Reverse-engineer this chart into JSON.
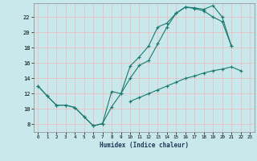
{
  "xlabel": "Humidex (Indice chaleur)",
  "line_color": "#1a7a6e",
  "bg_color": "#c8e8ec",
  "grid_color": "#f0b8b8",
  "xlim": [
    -0.5,
    23.5
  ],
  "ylim": [
    7.0,
    23.8
  ],
  "yticks": [
    8,
    10,
    12,
    14,
    16,
    18,
    20,
    22
  ],
  "xticks": [
    0,
    1,
    2,
    3,
    4,
    5,
    6,
    7,
    8,
    9,
    10,
    11,
    12,
    13,
    14,
    15,
    16,
    17,
    18,
    19,
    20,
    21,
    22,
    23
  ],
  "line1_x": [
    0,
    1,
    2,
    3,
    4,
    5,
    6,
    7,
    8,
    9,
    10,
    11,
    12,
    13,
    14,
    15,
    16,
    17,
    18,
    19,
    20,
    21
  ],
  "line1_y": [
    13,
    11.7,
    10.5,
    10.5,
    10.2,
    9.0,
    7.8,
    8.1,
    10.3,
    12.0,
    15.6,
    16.8,
    18.2,
    20.7,
    21.2,
    22.5,
    23.3,
    23.1,
    22.8,
    22.0,
    21.4,
    18.2
  ],
  "line2_x": [
    0,
    1,
    2,
    3,
    4,
    5,
    6,
    7,
    8,
    9,
    10,
    11,
    12,
    13,
    14,
    15,
    16,
    17,
    18,
    19,
    20,
    21
  ],
  "line2_y": [
    13,
    11.7,
    10.5,
    10.5,
    10.2,
    9.0,
    7.8,
    8.1,
    12.3,
    12.0,
    14.0,
    15.7,
    16.3,
    18.5,
    20.7,
    22.5,
    23.3,
    23.2,
    23.0,
    23.5,
    22.0,
    18.2
  ],
  "line3_x": [
    10,
    11,
    12,
    13,
    14,
    15,
    16,
    17,
    18,
    19,
    20,
    21,
    22
  ],
  "line3_y": [
    11.0,
    11.5,
    12.0,
    12.5,
    13.0,
    13.5,
    14.0,
    14.3,
    14.7,
    15.0,
    15.2,
    15.5,
    15.0
  ]
}
